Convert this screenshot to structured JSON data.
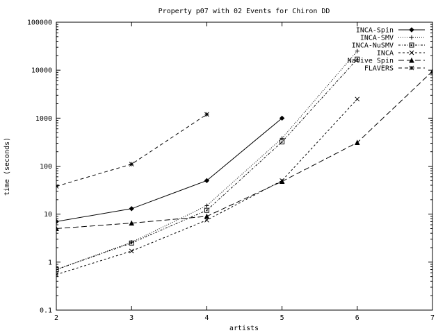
{
  "chart_data": {
    "type": "line",
    "title": "Property p07 with 02 Events for Chiron DD",
    "xlabel": "artists",
    "ylabel": "time (seconds)",
    "xlim": [
      2,
      7
    ],
    "ylim": [
      0.1,
      100000
    ],
    "yscale": "log",
    "grid": false,
    "legend_position": "top-right",
    "x_ticks": [
      2,
      3,
      4,
      5,
      6,
      7
    ],
    "x_tick_labels": [
      "2",
      "3",
      "4",
      "5",
      "6",
      "7"
    ],
    "y_ticks": [
      0.1,
      1,
      10,
      100,
      1000,
      10000,
      100000
    ],
    "y_tick_labels": [
      "0.1",
      "1",
      "10",
      "100",
      "1000",
      "10000",
      "100000"
    ],
    "series": [
      {
        "name": "INCA-Spin",
        "dash": "solid",
        "marker": "diamond",
        "x": [
          2,
          3,
          4,
          5
        ],
        "values": [
          7,
          13,
          50,
          1000
        ]
      },
      {
        "name": "INCA-SMV",
        "dash": "dotted",
        "marker": "plus",
        "x": [
          2,
          3,
          4,
          5,
          6
        ],
        "values": [
          0.7,
          2.6,
          15,
          380,
          25000
        ]
      },
      {
        "name": "INCA-NuSMV",
        "dash": "dashdot",
        "marker": "square",
        "x": [
          2,
          3,
          4,
          5,
          6
        ],
        "values": [
          0.7,
          2.5,
          12,
          320,
          17000
        ]
      },
      {
        "name": "INCA",
        "dash": "dashed-short",
        "marker": "cross",
        "x": [
          2,
          3,
          4,
          5,
          6
        ],
        "values": [
          0.55,
          1.7,
          7.5,
          50,
          2500
        ]
      },
      {
        "name": "Native Spin",
        "dash": "dashed-long",
        "marker": "triangle",
        "x": [
          2,
          3,
          4,
          5,
          6,
          7
        ],
        "values": [
          5,
          6.5,
          9,
          48,
          310,
          9500
        ]
      },
      {
        "name": "FLAVERS",
        "dash": "dashed",
        "marker": "star",
        "x": [
          2,
          3,
          4
        ],
        "values": [
          38,
          110,
          1200
        ]
      }
    ]
  }
}
